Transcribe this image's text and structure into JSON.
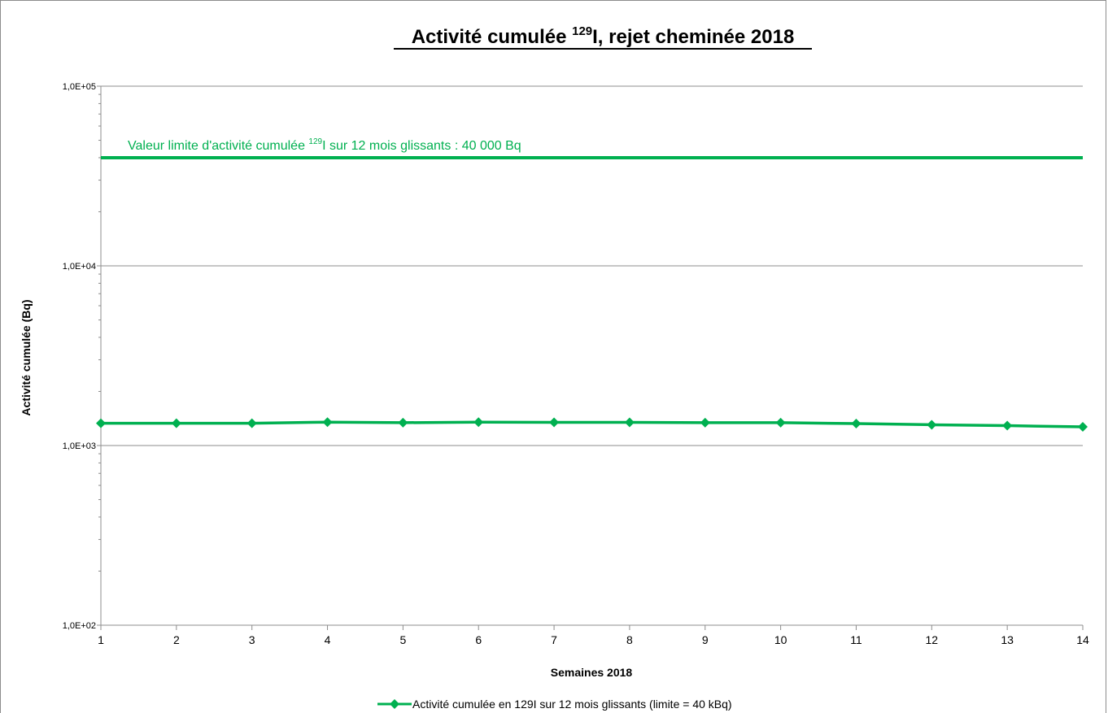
{
  "chart_data": {
    "type": "line",
    "title_main": "Activité cumulée ",
    "title_sup": "129",
    "title_rest": "I, rejet cheminée 2018",
    "xlabel": "Semaines 2018",
    "ylabel": "Activité cumulée (Bq)",
    "y_scale": "log",
    "ylim": [
      100,
      100000
    ],
    "y_ticks": [
      {
        "value": 100,
        "label": "1,0E+02"
      },
      {
        "value": 1000,
        "label": "1,0E+03"
      },
      {
        "value": 10000,
        "label": "1,0E+04"
      },
      {
        "value": 100000,
        "label": "1,0E+05"
      }
    ],
    "x": [
      1,
      2,
      3,
      4,
      5,
      6,
      7,
      8,
      9,
      10,
      11,
      12,
      13,
      14
    ],
    "x_tick_labels": [
      "1",
      "2",
      "3",
      "4",
      "5",
      "6",
      "7",
      "8",
      "9",
      "10",
      "11",
      "12",
      "13",
      "14"
    ],
    "series": [
      {
        "name": "Activité cumulée en 129I sur 12 mois glissants (limite = 40 kBq)",
        "values": [
          1330,
          1330,
          1330,
          1350,
          1340,
          1350,
          1345,
          1345,
          1340,
          1340,
          1325,
          1305,
          1290,
          1270
        ],
        "color": "#00b050",
        "marker": "diamond"
      }
    ],
    "limit_line": {
      "value": 40000,
      "color": "#00b050",
      "label_pre": "Valeur limite d'activité cumulée ",
      "label_sup": "129",
      "label_post": "I sur 12 mois  glissants : 40 000 Bq"
    },
    "grid": "horizontal-major",
    "legend_position": "bottom"
  }
}
